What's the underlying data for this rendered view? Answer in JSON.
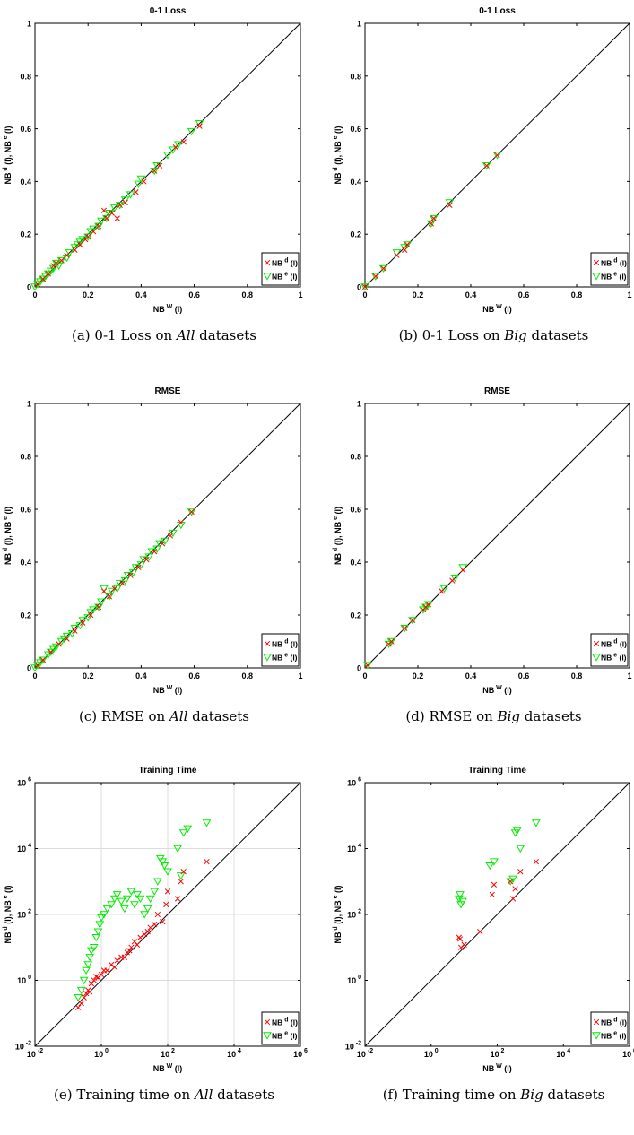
{
  "legend": {
    "d_base": "NB",
    "d_sup": "d",
    "d_tail": " (l)",
    "e_base": "NB",
    "e_sup": "e",
    "e_tail": " (l)"
  },
  "axis_labels": {
    "x": {
      "base": "NB",
      "sup": "W",
      "tail": " (l)"
    },
    "y": {
      "a": "NB",
      "a_sup": "d",
      "b": " (l), NB",
      "b_sup": "e",
      "c": " (l)"
    }
  },
  "colors": {
    "d": "#ff0000",
    "e": "#00ee00",
    "diagonal": "#000000",
    "grid": "#dcdcdc"
  },
  "chart_data": [
    {
      "type": "scatter",
      "title": "0-1 Loss",
      "xlim": [
        0,
        1
      ],
      "ylim": [
        0,
        1
      ],
      "xticks": [
        "0",
        "0.2",
        "0.4",
        "0.6",
        "0.8",
        "1"
      ],
      "yticks": [
        "0",
        "0.2",
        "0.4",
        "0.6",
        "0.8",
        "1"
      ],
      "grid": false,
      "legend": "bottom-right",
      "caption": {
        "pre": "(a) 0-1 Loss on ",
        "em": "All",
        "post": " datasets"
      },
      "series": [
        {
          "name": "NB^d (l)",
          "marker": "x",
          "x": [
            0.01,
            0.03,
            0.05,
            0.07,
            0.08,
            0.1,
            0.12,
            0.15,
            0.17,
            0.19,
            0.2,
            0.22,
            0.24,
            0.26,
            0.27,
            0.29,
            0.31,
            0.32,
            0.34,
            0.38,
            0.41,
            0.45,
            0.47,
            0.53,
            0.56,
            0.62
          ],
          "y": [
            0.01,
            0.03,
            0.05,
            0.08,
            0.09,
            0.1,
            0.12,
            0.14,
            0.16,
            0.18,
            0.19,
            0.21,
            0.23,
            0.29,
            0.26,
            0.28,
            0.26,
            0.31,
            0.32,
            0.36,
            0.4,
            0.44,
            0.46,
            0.53,
            0.55,
            0.61
          ]
        },
        {
          "name": "NB^e (l)",
          "marker": "triangle",
          "x": [
            0.0,
            0.01,
            0.02,
            0.03,
            0.04,
            0.05,
            0.06,
            0.07,
            0.08,
            0.09,
            0.1,
            0.12,
            0.13,
            0.15,
            0.16,
            0.17,
            0.18,
            0.2,
            0.21,
            0.22,
            0.24,
            0.25,
            0.27,
            0.28,
            0.3,
            0.32,
            0.34,
            0.36,
            0.39,
            0.4,
            0.45,
            0.46,
            0.5,
            0.52,
            0.54,
            0.59,
            0.62
          ],
          "y": [
            0.0,
            0.01,
            0.02,
            0.03,
            0.04,
            0.05,
            0.06,
            0.07,
            0.09,
            0.08,
            0.1,
            0.11,
            0.13,
            0.15,
            0.16,
            0.17,
            0.18,
            0.19,
            0.21,
            0.22,
            0.23,
            0.25,
            0.26,
            0.28,
            0.3,
            0.31,
            0.33,
            0.35,
            0.39,
            0.41,
            0.44,
            0.46,
            0.5,
            0.52,
            0.54,
            0.59,
            0.62
          ]
        }
      ]
    },
    {
      "type": "scatter",
      "title": "0-1 Loss",
      "xlim": [
        0,
        1
      ],
      "ylim": [
        0,
        1
      ],
      "xticks": [
        "0",
        "0.2",
        "0.4",
        "0.6",
        "0.8",
        "1"
      ],
      "yticks": [
        "0",
        "0.2",
        "0.4",
        "0.6",
        "0.8",
        "1"
      ],
      "grid": false,
      "legend": "bottom-right",
      "caption": {
        "pre": "(b) 0-1 Loss on ",
        "em": "Big",
        "post": " datasets"
      },
      "series": [
        {
          "name": "NB^d (l)",
          "marker": "x",
          "x": [
            0.0,
            0.04,
            0.07,
            0.12,
            0.15,
            0.16,
            0.25,
            0.26,
            0.32,
            0.46,
            0.5
          ],
          "y": [
            0.0,
            0.04,
            0.07,
            0.12,
            0.14,
            0.16,
            0.24,
            0.26,
            0.31,
            0.46,
            0.5
          ]
        },
        {
          "name": "NB^e (l)",
          "marker": "triangle",
          "x": [
            0.0,
            0.04,
            0.07,
            0.12,
            0.15,
            0.16,
            0.25,
            0.26,
            0.32,
            0.46,
            0.5
          ],
          "y": [
            0.0,
            0.04,
            0.07,
            0.13,
            0.15,
            0.16,
            0.24,
            0.26,
            0.32,
            0.46,
            0.5
          ]
        }
      ]
    },
    {
      "type": "scatter",
      "title": "RMSE",
      "xlim": [
        0,
        1
      ],
      "ylim": [
        0,
        1
      ],
      "xticks": [
        "0",
        "0.2",
        "0.4",
        "0.6",
        "0.8",
        "1"
      ],
      "yticks": [
        "0",
        "0.2",
        "0.4",
        "0.6",
        "0.8",
        "1"
      ],
      "grid": false,
      "legend": "bottom-right",
      "caption": {
        "pre": "(c) RMSE on ",
        "em": "All",
        "post": " datasets"
      },
      "series": [
        {
          "name": "NB^d (l)",
          "marker": "x",
          "x": [
            0.01,
            0.03,
            0.06,
            0.09,
            0.12,
            0.15,
            0.18,
            0.21,
            0.24,
            0.26,
            0.28,
            0.3,
            0.33,
            0.36,
            0.39,
            0.42,
            0.45,
            0.48,
            0.51,
            0.55,
            0.59
          ],
          "y": [
            0.01,
            0.03,
            0.06,
            0.09,
            0.11,
            0.14,
            0.17,
            0.2,
            0.23,
            0.29,
            0.27,
            0.3,
            0.32,
            0.35,
            0.38,
            0.41,
            0.44,
            0.47,
            0.5,
            0.55,
            0.59
          ]
        },
        {
          "name": "NB^e (l)",
          "marker": "triangle",
          "x": [
            0.0,
            0.01,
            0.02,
            0.03,
            0.05,
            0.06,
            0.07,
            0.08,
            0.1,
            0.11,
            0.12,
            0.14,
            0.15,
            0.17,
            0.18,
            0.2,
            0.21,
            0.22,
            0.24,
            0.25,
            0.26,
            0.28,
            0.29,
            0.31,
            0.32,
            0.34,
            0.35,
            0.37,
            0.38,
            0.4,
            0.41,
            0.43,
            0.44,
            0.46,
            0.47,
            0.49,
            0.52,
            0.55,
            0.59
          ],
          "y": [
            0.0,
            0.01,
            0.02,
            0.03,
            0.05,
            0.06,
            0.07,
            0.08,
            0.1,
            0.11,
            0.12,
            0.13,
            0.15,
            0.16,
            0.18,
            0.19,
            0.21,
            0.22,
            0.23,
            0.25,
            0.3,
            0.27,
            0.29,
            0.3,
            0.32,
            0.33,
            0.35,
            0.36,
            0.38,
            0.39,
            0.41,
            0.42,
            0.44,
            0.45,
            0.47,
            0.48,
            0.51,
            0.54,
            0.59
          ]
        }
      ]
    },
    {
      "type": "scatter",
      "title": "RMSE",
      "xlim": [
        0,
        1
      ],
      "ylim": [
        0,
        1
      ],
      "xticks": [
        "0",
        "0.2",
        "0.4",
        "0.6",
        "0.8",
        "1"
      ],
      "yticks": [
        "0",
        "0.2",
        "0.4",
        "0.6",
        "0.8",
        "1"
      ],
      "grid": false,
      "legend": "bottom-right",
      "caption": {
        "pre": "(d) RMSE on ",
        "em": "Big",
        "post": " datasets"
      },
      "series": [
        {
          "name": "NB^d (l)",
          "marker": "x",
          "x": [
            0.01,
            0.09,
            0.1,
            0.15,
            0.18,
            0.22,
            0.23,
            0.24,
            0.29,
            0.33,
            0.37
          ],
          "y": [
            0.01,
            0.09,
            0.1,
            0.15,
            0.18,
            0.22,
            0.23,
            0.24,
            0.29,
            0.33,
            0.37
          ]
        },
        {
          "name": "NB^e (l)",
          "marker": "triangle",
          "x": [
            0.01,
            0.09,
            0.1,
            0.15,
            0.18,
            0.22,
            0.23,
            0.24,
            0.3,
            0.34,
            0.37
          ],
          "y": [
            0.01,
            0.09,
            0.1,
            0.15,
            0.18,
            0.22,
            0.23,
            0.24,
            0.3,
            0.34,
            0.38
          ]
        }
      ]
    },
    {
      "type": "scatter",
      "title": "Training Time",
      "xscale": "log",
      "yscale": "log",
      "xlim": [
        0.01,
        1000000
      ],
      "ylim": [
        0.01,
        1000000
      ],
      "xticks": [
        "10^-2",
        "10^0",
        "10^2",
        "10^4",
        "10^6"
      ],
      "yticks": [
        "10^-2",
        "10^0",
        "10^2",
        "10^4",
        "10^6"
      ],
      "grid": true,
      "legend": "bottom-right",
      "caption": {
        "pre": "(e) Training time on ",
        "em": "All",
        "post": " datasets"
      },
      "series": [
        {
          "name": "NB^d (l)",
          "marker": "x",
          "x": [
            0.2,
            0.25,
            0.3,
            0.35,
            0.4,
            0.45,
            0.5,
            0.6,
            0.7,
            0.8,
            1.0,
            1.2,
            1.5,
            2,
            2.5,
            3,
            4,
            5,
            6,
            7,
            8,
            10,
            12,
            15,
            20,
            25,
            30,
            40,
            50,
            70,
            90,
            100,
            200,
            250,
            300,
            1500
          ],
          "y": [
            0.15,
            0.2,
            0.3,
            0.4,
            0.5,
            0.45,
            0.8,
            1.0,
            1.3,
            1.2,
            1.5,
            2,
            2,
            3,
            2.5,
            4,
            5,
            5,
            7,
            8,
            10,
            15,
            12,
            20,
            25,
            30,
            40,
            50,
            100,
            60,
            200,
            500,
            300,
            1000,
            2000,
            4000
          ]
        },
        {
          "name": "NB^e (l)",
          "marker": "triangle",
          "x": [
            0.2,
            0.25,
            0.3,
            0.35,
            0.4,
            0.45,
            0.5,
            0.6,
            0.7,
            0.8,
            0.9,
            1.0,
            1.2,
            1.5,
            2,
            2.5,
            3,
            4,
            5,
            6,
            8,
            10,
            12,
            15,
            20,
            25,
            30,
            40,
            50,
            60,
            70,
            80,
            100,
            200,
            250,
            300,
            400,
            1500
          ],
          "y": [
            0.3,
            0.5,
            1.0,
            2,
            3,
            5,
            8,
            10,
            20,
            30,
            50,
            80,
            100,
            150,
            200,
            300,
            400,
            250,
            150,
            300,
            500,
            200,
            400,
            300,
            100,
            150,
            300,
            500,
            1000,
            5000,
            4000,
            3000,
            2000,
            10000,
            1500,
            30000,
            40000,
            60000
          ]
        }
      ]
    },
    {
      "type": "scatter",
      "title": "Training Time",
      "xscale": "log",
      "yscale": "log",
      "xlim": [
        0.01,
        1000000
      ],
      "ylim": [
        0.01,
        1000000
      ],
      "xticks": [
        "10^-2",
        "10^0",
        "10^2",
        "10^4",
        "10^6"
      ],
      "yticks": [
        "10^-2",
        "10^0",
        "10^2",
        "10^4",
        "10^6"
      ],
      "grid": false,
      "legend": "bottom-right",
      "caption": {
        "pre": "(f) Training time on ",
        "em": "Big",
        "post": " datasets"
      },
      "series": [
        {
          "name": "NB^d (l)",
          "marker": "x",
          "x": [
            7,
            7.5,
            8,
            10,
            30,
            70,
            80,
            250,
            300,
            350,
            500,
            1500
          ],
          "y": [
            20,
            18,
            10,
            12,
            30,
            400,
            800,
            1000,
            300,
            600,
            2000,
            4000
          ]
        },
        {
          "name": "NB^e (l)",
          "marker": "triangle",
          "x": [
            7,
            7.5,
            8,
            9,
            60,
            80,
            250,
            300,
            350,
            400,
            500,
            1500
          ],
          "y": [
            300,
            400,
            200,
            250,
            3000,
            4000,
            1000,
            1200,
            30000,
            35000,
            10000,
            60000
          ]
        }
      ]
    }
  ]
}
